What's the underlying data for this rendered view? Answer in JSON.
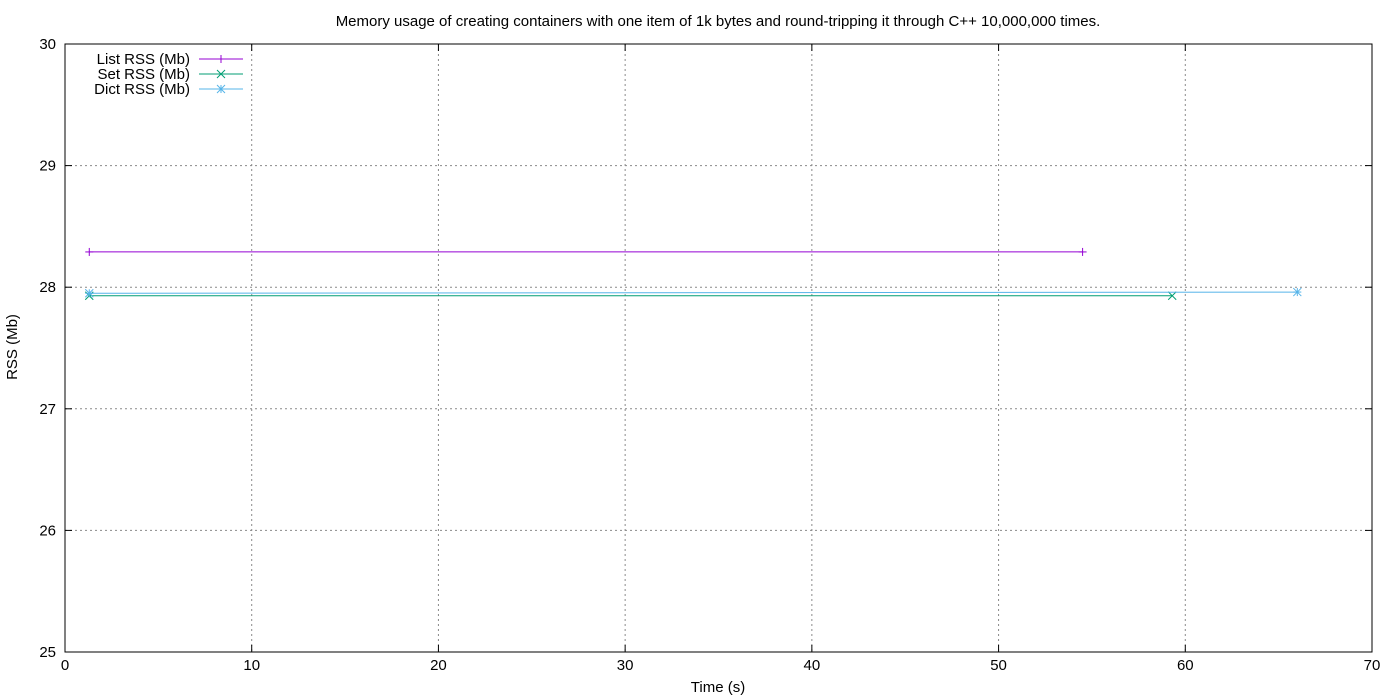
{
  "chart_data": {
    "type": "line",
    "title": "Memory usage of creating containers with one item of 1k bytes and round-tripping it through C++ 10,000,000 times.",
    "xlabel": "Time (s)",
    "ylabel": "RSS (Mb)",
    "xlim": [
      0,
      70
    ],
    "ylim": [
      25,
      30
    ],
    "xticks": [
      0,
      10,
      20,
      30,
      40,
      50,
      60,
      70
    ],
    "yticks": [
      25,
      26,
      27,
      28,
      29,
      30
    ],
    "grid": true,
    "legend_position": "top-left",
    "series": [
      {
        "name": "List RSS (Mb)",
        "color": "#9400d3",
        "marker": "plus",
        "x": [
          1.3,
          54.5
        ],
        "y": [
          28.29,
          28.29
        ]
      },
      {
        "name": "Set RSS (Mb)",
        "color": "#009e73",
        "marker": "cross",
        "x": [
          1.3,
          59.3
        ],
        "y": [
          27.93,
          27.93
        ]
      },
      {
        "name": "Dict RSS (Mb)",
        "color": "#56b4e9",
        "marker": "asterisk",
        "x": [
          1.3,
          66.0
        ],
        "y": [
          27.95,
          27.96
        ]
      }
    ]
  }
}
